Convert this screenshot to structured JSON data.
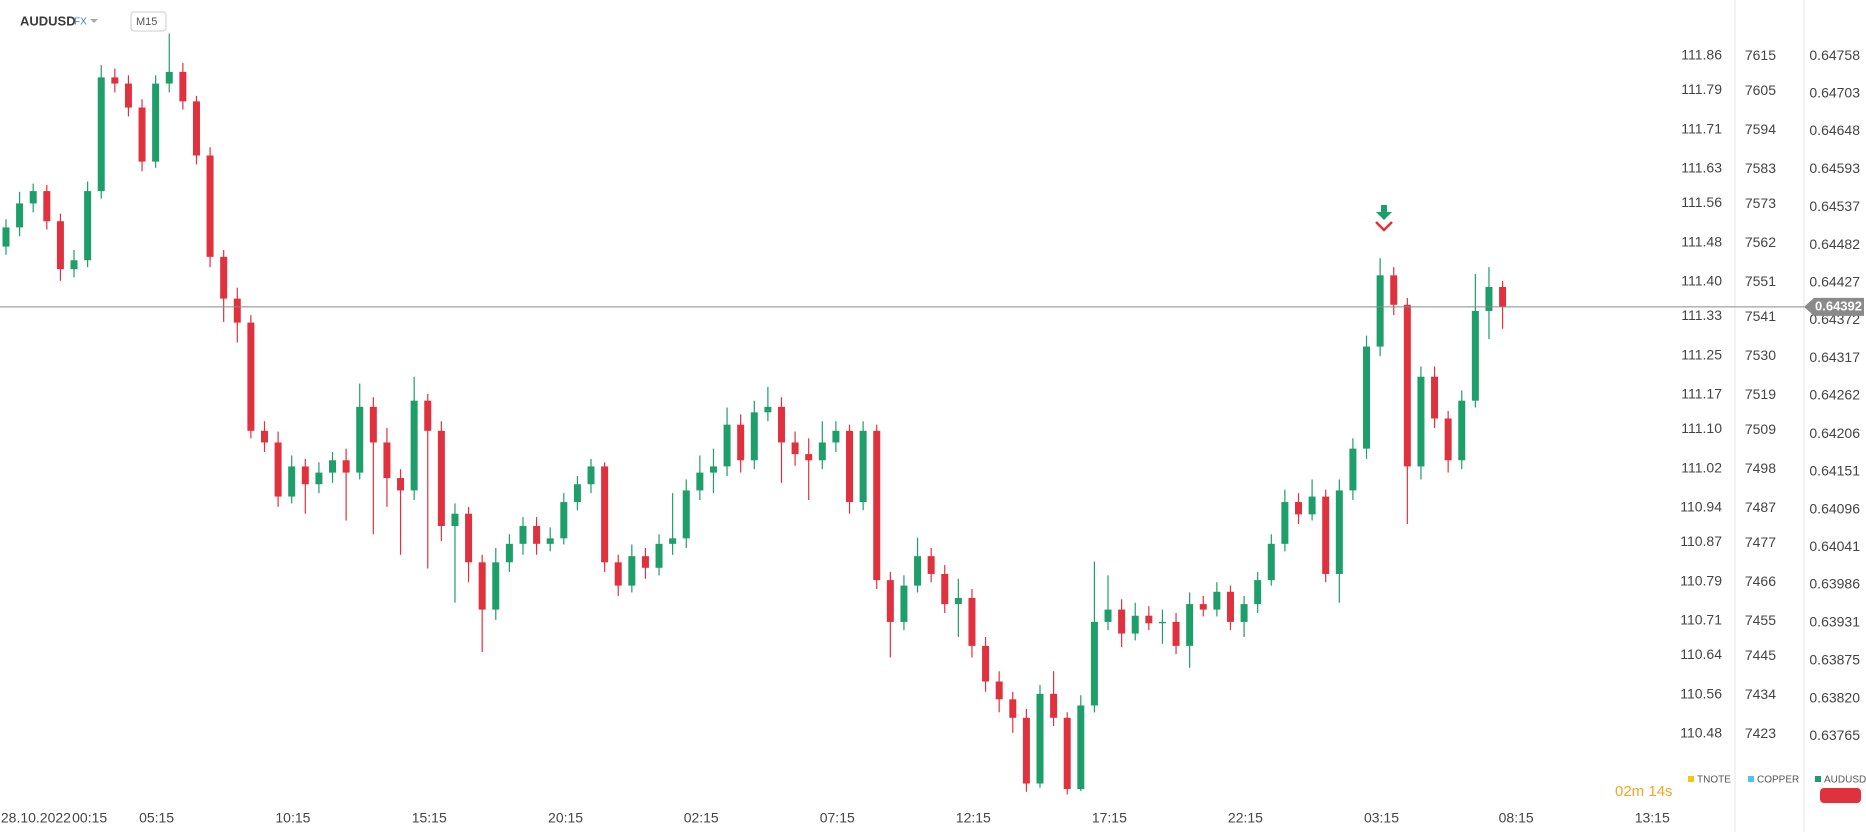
{
  "header": {
    "symbol": "AUDUSD",
    "market": "FX",
    "interval": "M15"
  },
  "countdown": "02m 14s",
  "chart_data": {
    "type": "candlestick",
    "up_color": "#1e9e6a",
    "down_color": "#e0323e",
    "grid": false,
    "xlim": [
      -0.44,
      122.6
    ],
    "xticks": [
      {
        "value": 2.2,
        "label": "28.10.2022"
      },
      {
        "value": 6.15,
        "label": "00:15"
      },
      {
        "value": 11.07,
        "label": "05:15"
      },
      {
        "value": 21.09,
        "label": "10:15"
      },
      {
        "value": 31.11,
        "label": "15:15"
      },
      {
        "value": 41.13,
        "label": "20:15"
      },
      {
        "value": 51.1,
        "label": "02:15"
      },
      {
        "value": 61.1,
        "label": "07:15"
      },
      {
        "value": 71.1,
        "label": "12:15"
      },
      {
        "value": 81.1,
        "label": "17:15"
      },
      {
        "value": 91.1,
        "label": "22:15"
      },
      {
        "value": 101.1,
        "label": "03:15"
      },
      {
        "value": 111.0,
        "label": "08:15"
      },
      {
        "value": 121.0,
        "label": "13:15"
      }
    ],
    "ylim": [
      0.63653,
      0.6484
    ],
    "yticks": [
      0.64758,
      0.64703,
      0.64648,
      0.64593,
      0.64537,
      0.64482,
      0.64427,
      0.64372,
      0.64317,
      0.64262,
      0.64206,
      0.64151,
      0.64096,
      0.64041,
      0.63986,
      0.63931,
      0.63875,
      {
        "value": 0.6382,
        "label": "0.63820"
      },
      0.63765
    ],
    "y2lim": [
      110.319,
      111.974
    ],
    "y2ticks": [
      111.86,
      111.79,
      111.71,
      111.63,
      111.56,
      111.48,
      {
        "value": 111.4,
        "label": "111.40"
      },
      111.33,
      111.25,
      111.17,
      {
        "value": 111.1,
        "label": "111.10"
      },
      111.02,
      110.94,
      110.87,
      110.79,
      110.71,
      110.64,
      110.56,
      110.48
    ],
    "y3lim": [
      7400.65,
      7630.9
    ],
    "y3ticks": [
      7615,
      7605,
      7594,
      7583,
      7573,
      7562,
      7551,
      7541,
      7530,
      7519,
      7509,
      7498,
      7487,
      7477,
      7466,
      7455,
      7445,
      7434,
      7423
    ],
    "last_price": 0.64392,
    "legend": [
      {
        "name": "TNOTE",
        "color": "#f5c518"
      },
      {
        "name": "COPPER",
        "color": "#4fc3f7"
      },
      {
        "name": "AUDUSD",
        "color": "#1e9e6a"
      }
    ],
    "open": [
      0.6448,
      0.64508,
      0.64543,
      0.64561,
      0.64517,
      0.64447,
      0.6446,
      0.64561,
      0.64727,
      0.64718,
      0.64683,
      0.64604,
      0.64718,
      0.64735,
      0.64692,
      0.64613,
      0.64465,
      0.64404,
      0.64369,
      0.64211,
      0.64194,
      0.64115,
      0.64159,
      0.64133,
      0.6415,
      0.64168,
      0.6415,
      0.64246,
      0.64194,
      0.64142,
      0.64124,
      0.64255,
      0.64211,
      0.64072,
      0.6409,
      0.64019,
      0.6395,
      0.64019,
      0.64046,
      0.64072,
      0.64046,
      0.64054,
      0.64107,
      0.64133,
      0.64159,
      0.64019,
      0.63985,
      0.64028,
      0.64011,
      0.64046,
      0.64054,
      0.64124,
      0.6415,
      0.64159,
      0.6422,
      0.64168,
      0.64238,
      0.64246,
      0.64194,
      0.64177,
      0.64168,
      0.64194,
      0.64211,
      0.64107,
      0.64211,
      0.63993,
      0.63932,
      0.63985,
      0.64028,
      0.64002,
      0.63958,
      0.63967,
      0.63897,
      0.63845,
      0.63819,
      0.63792,
      0.63696,
      0.63827,
      0.63792,
      0.63688,
      0.6381,
      0.63932,
      0.6395,
      0.63915,
      0.63941,
      0.6393,
      0.63932,
      0.63897,
      0.63958,
      0.6395,
      0.63976,
      0.63932,
      0.63958,
      0.63993,
      0.64046,
      0.64107,
      0.64089,
      0.64115,
      0.64002,
      0.64124,
      0.64185,
      0.64334,
      0.64438,
      0.64395,
      0.64159,
      0.6429,
      0.64229,
      0.64168,
      0.64255,
      0.64386,
      0.64421
    ],
    "high": [
      0.6452,
      0.6456,
      0.64572,
      0.6457,
      0.64528,
      0.64475,
      0.64575,
      0.64745,
      0.6474,
      0.6473,
      0.64695,
      0.6473,
      0.64791,
      0.64748,
      0.647,
      0.64625,
      0.64475,
      0.6442,
      0.6438,
      0.64225,
      0.6421,
      0.64175,
      0.6417,
      0.64165,
      0.6418,
      0.64185,
      0.6428,
      0.6426,
      0.64215,
      0.64155,
      0.6429,
      0.64265,
      0.64225,
      0.64105,
      0.641,
      0.6403,
      0.6404,
      0.6406,
      0.64085,
      0.64085,
      0.6407,
      0.6412,
      0.64145,
      0.6417,
      0.64165,
      0.6403,
      0.64045,
      0.6404,
      0.6406,
      0.6412,
      0.6414,
      0.64175,
      0.64185,
      0.64245,
      0.64235,
      0.64255,
      0.64275,
      0.6426,
      0.6421,
      0.642,
      0.64225,
      0.64225,
      0.6422,
      0.64225,
      0.6422,
      0.64005,
      0.64,
      0.64055,
      0.6404,
      0.64015,
      0.63995,
      0.6398,
      0.6391,
      0.6386,
      0.6383,
      0.63805,
      0.6384,
      0.6386,
      0.638,
      0.63825,
      0.6402,
      0.64,
      0.63965,
      0.6396,
      0.63955,
      0.6395,
      0.63945,
      0.63975,
      0.6397,
      0.6399,
      0.63985,
      0.6397,
      0.64005,
      0.6406,
      0.64125,
      0.6412,
      0.6414,
      0.64125,
      0.6414,
      0.642,
      0.6435,
      0.64463,
      0.6445,
      0.64405,
      0.64305,
      0.64305,
      0.6424,
      0.6427,
      0.6444,
      0.6445,
      0.6443
    ],
    "low": [
      0.64468,
      0.64495,
      0.6453,
      0.64505,
      0.6443,
      0.64435,
      0.6445,
      0.6455,
      0.64705,
      0.6467,
      0.6459,
      0.64595,
      0.64705,
      0.6468,
      0.646,
      0.6445,
      0.6437,
      0.6434,
      0.642,
      0.6418,
      0.641,
      0.64105,
      0.6409,
      0.6412,
      0.64135,
      0.6408,
      0.6414,
      0.6406,
      0.641,
      0.6403,
      0.6411,
      0.6401,
      0.6405,
      0.6396,
      0.6399,
      0.63888,
      0.63935,
      0.64005,
      0.6403,
      0.6403,
      0.64035,
      0.64045,
      0.64095,
      0.6412,
      0.64005,
      0.6397,
      0.63975,
      0.63995,
      0.64,
      0.6403,
      0.6404,
      0.6411,
      0.6412,
      0.64145,
      0.6415,
      0.64155,
      0.64225,
      0.64135,
      0.6416,
      0.6411,
      0.64155,
      0.6418,
      0.6409,
      0.64095,
      0.6398,
      0.6388,
      0.6392,
      0.63975,
      0.6399,
      0.63945,
      0.6391,
      0.6388,
      0.6383,
      0.638,
      0.6377,
      0.63684,
      0.6369,
      0.6378,
      0.6368,
      0.63685,
      0.638,
      0.6392,
      0.63895,
      0.63905,
      0.6392,
      0.639,
      0.63885,
      0.63865,
      0.6394,
      0.6394,
      0.6392,
      0.6391,
      0.63945,
      0.63985,
      0.64035,
      0.64075,
      0.6408,
      0.6399,
      0.6396,
      0.6411,
      0.6417,
      0.6432,
      0.6438,
      0.64075,
      0.6414,
      0.64215,
      0.6415,
      0.64155,
      0.64245,
      0.64345,
      0.6436
    ],
    "close": [
      0.64508,
      0.64543,
      0.64561,
      0.64517,
      0.64447,
      0.6446,
      0.64561,
      0.64727,
      0.64718,
      0.64683,
      0.64604,
      0.64718,
      0.64735,
      0.64692,
      0.64613,
      0.64465,
      0.64404,
      0.64369,
      0.64211,
      0.64194,
      0.64115,
      0.64159,
      0.64133,
      0.6415,
      0.64168,
      0.6415,
      0.64246,
      0.64194,
      0.64142,
      0.64124,
      0.64255,
      0.64211,
      0.64072,
      0.6409,
      0.64019,
      0.6395,
      0.64019,
      0.64046,
      0.64072,
      0.64046,
      0.64054,
      0.64107,
      0.64133,
      0.64159,
      0.64019,
      0.63985,
      0.64028,
      0.64011,
      0.64046,
      0.64054,
      0.64124,
      0.6415,
      0.64159,
      0.6422,
      0.64168,
      0.64238,
      0.64246,
      0.64194,
      0.64177,
      0.64168,
      0.64194,
      0.64211,
      0.64107,
      0.64211,
      0.63993,
      0.63932,
      0.63985,
      0.64028,
      0.64002,
      0.63958,
      0.63967,
      0.63897,
      0.63845,
      0.63819,
      0.63792,
      0.63696,
      0.63827,
      0.63792,
      0.63688,
      0.6381,
      0.63932,
      0.6395,
      0.63915,
      0.63941,
      0.6393,
      0.63932,
      0.63897,
      0.63958,
      0.6395,
      0.63976,
      0.63932,
      0.63958,
      0.63993,
      0.64046,
      0.64107,
      0.64089,
      0.64115,
      0.64002,
      0.64124,
      0.64185,
      0.64334,
      0.64438,
      0.64395,
      0.64159,
      0.6429,
      0.64229,
      0.64168,
      0.64255,
      0.64386,
      0.64421,
      0.64392
    ]
  }
}
